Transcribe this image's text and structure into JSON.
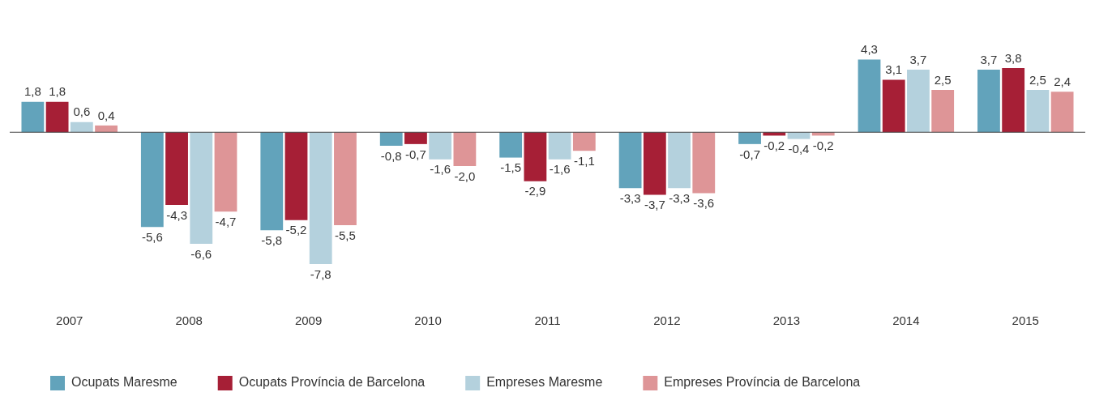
{
  "chart_data": {
    "type": "bar",
    "categories": [
      "2007",
      "2008",
      "2009",
      "2010",
      "2011",
      "2012",
      "2013",
      "2014",
      "2015"
    ],
    "series": [
      {
        "name": "Ocupats Maresme",
        "color": "#62a3bb",
        "values": [
          1.8,
          -5.6,
          -5.8,
          -0.8,
          -1.5,
          -3.3,
          -0.7,
          4.3,
          3.7
        ],
        "value_labels": [
          "1,8",
          "-5,6",
          "-5,8",
          "-0,8",
          "-1,5",
          "-3,3",
          "-0,7",
          "4,3",
          "3,7"
        ]
      },
      {
        "name": "Ocupats Província de Barcelona",
        "color": "#a61f36",
        "values": [
          1.8,
          -4.3,
          -5.2,
          -0.7,
          -2.9,
          -3.7,
          -0.2,
          3.1,
          3.8
        ],
        "value_labels": [
          "1,8",
          "-4,3",
          "-5,2",
          "-0,7",
          "-2,9",
          "-3,7",
          "-0,2",
          "3,1",
          "3,8"
        ]
      },
      {
        "name": "Empreses Maresme",
        "color": "#b4d1dd",
        "values": [
          0.6,
          -6.6,
          -7.8,
          -1.6,
          -1.6,
          -3.3,
          -0.4,
          3.7,
          2.5
        ],
        "value_labels": [
          "0,6",
          "-6,6",
          "-7,8",
          "-1,6",
          "-1,6",
          "-3,3",
          "-0,4",
          "3,7",
          "2,5"
        ]
      },
      {
        "name": "Empreses Província de Barcelona",
        "color": "#de9597",
        "values": [
          0.4,
          -4.7,
          -5.5,
          -2.0,
          -1.1,
          -3.6,
          -0.2,
          2.5,
          2.4
        ],
        "value_labels": [
          "0,4",
          "-4,7",
          "-5,5",
          "-2,0",
          "-1,1",
          "-3,6",
          "-0,2",
          "2,5",
          "2,4"
        ]
      }
    ],
    "legend": "bottom left",
    "grid": false
  }
}
